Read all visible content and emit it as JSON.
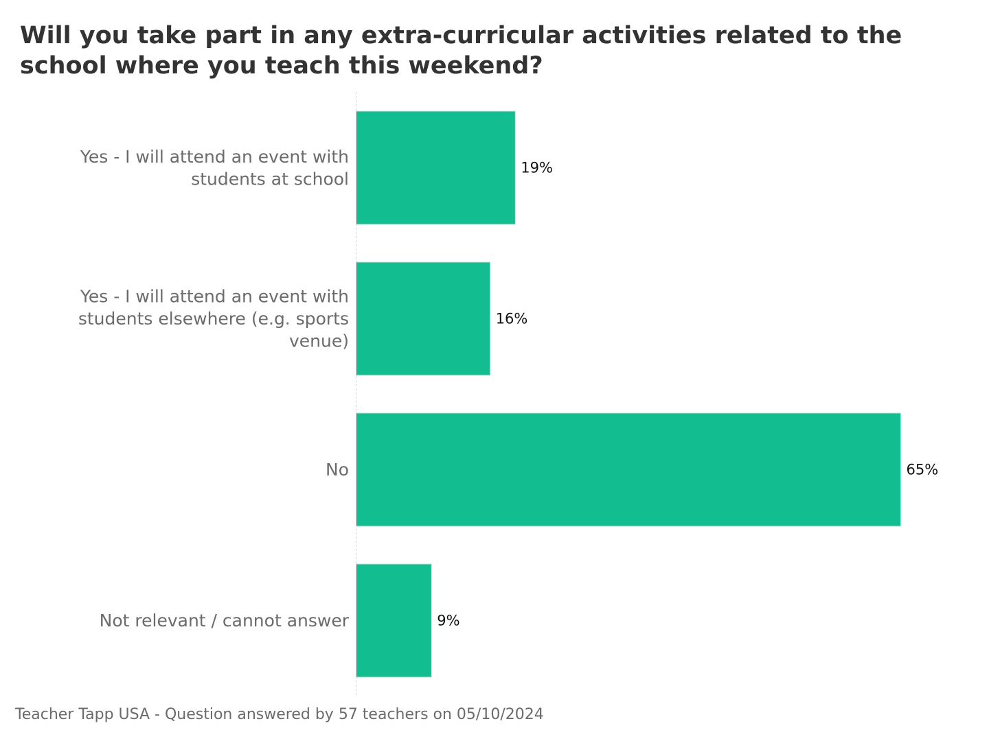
{
  "chart_data": {
    "type": "bar",
    "orientation": "horizontal",
    "title": "Will you take part in any extra-curricular activities related to the school where you teach this weekend?",
    "categories": [
      [
        "Yes - I will attend an event with",
        "students at school"
      ],
      [
        "Yes - I will attend an event with",
        "students elsewhere (e.g. sports",
        "venue)"
      ],
      [
        "No"
      ],
      [
        "Not relevant / cannot answer"
      ]
    ],
    "values": [
      19,
      16,
      65,
      9
    ],
    "value_labels": [
      "19%",
      "16%",
      "65%",
      "9%"
    ],
    "unit": "%",
    "xlim": [
      0,
      100
    ],
    "grid": false,
    "legend": "none",
    "colors": {
      "bar": "#12be8f",
      "bar_edge": "#d9d9d9",
      "category_label": "#6b6b6b",
      "value_label": "#111111",
      "title": "#333333",
      "baseline": "#d0d0d0"
    }
  },
  "footer": {
    "source": "Teacher Tapp USA - Question answered by 57 teachers on 05/10/2024"
  }
}
